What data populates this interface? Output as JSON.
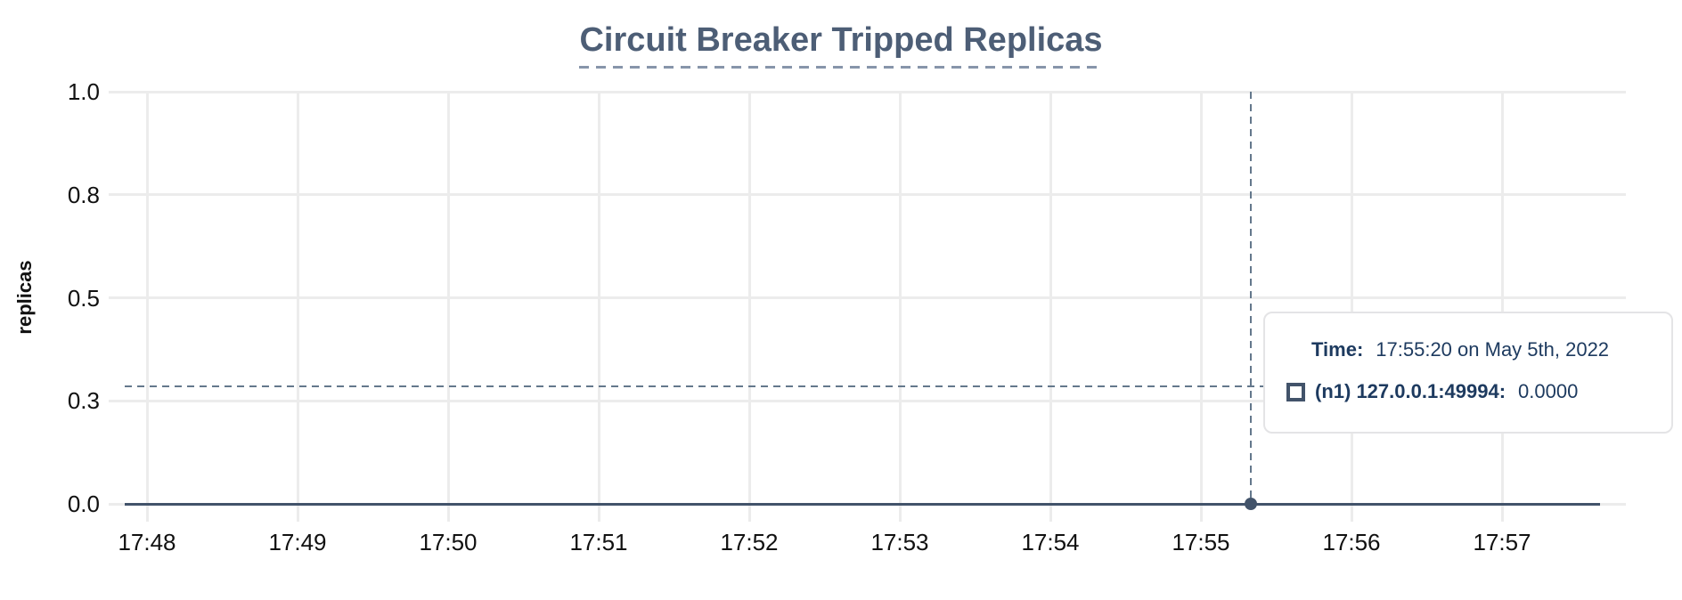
{
  "title": "Circuit Breaker Tripped Replicas",
  "y_axis_title": "replicas",
  "tooltip": {
    "time_label": "Time:",
    "time_value": "17:55:20 on May 5th, 2022",
    "series_key": "(n1) 127.0.0.1:49994:",
    "series_value": "0.0000",
    "marker_icon": "square-outline-icon"
  },
  "colors": {
    "title_text": "#4d5e76",
    "title_underline": "#8795aa",
    "grid": "#ececec",
    "axis_text": "#111111",
    "series_line": "#42536a",
    "crosshair": "#64788c",
    "tooltip_text": "#1d3a5f",
    "tooltip_border": "#e4e4e6",
    "background": "#ffffff"
  },
  "chart_data": {
    "type": "line",
    "title": "Circuit Breaker Tripped Replicas",
    "xlabel": "",
    "ylabel": "replicas",
    "ylim": [
      0,
      1
    ],
    "grid": true,
    "yticks": [
      {
        "value": 1.0,
        "label": "1.0"
      },
      {
        "value": 0.75,
        "label": "0.8"
      },
      {
        "value": 0.5,
        "label": "0.5"
      },
      {
        "value": 0.25,
        "label": "0.3"
      },
      {
        "value": 0.0,
        "label": "0.0"
      }
    ],
    "xticks": [
      "17:48",
      "17:49",
      "17:50",
      "17:51",
      "17:52",
      "17:53",
      "17:54",
      "17:55",
      "17:56",
      "17:57"
    ],
    "series": [
      {
        "name": "(n1) 127.0.0.1:49994",
        "color": "#42536a",
        "points": [
          {
            "time": "17:47:51",
            "value": 0.0
          },
          {
            "time": "17:57:39",
            "value": 0.0
          }
        ]
      }
    ],
    "crosshair": {
      "time": "17:55:20",
      "cursor_value": 0.285,
      "highlighted_point": {
        "series": "(n1) 127.0.0.1:49994",
        "time": "17:55:20",
        "value": 0.0
      }
    }
  }
}
